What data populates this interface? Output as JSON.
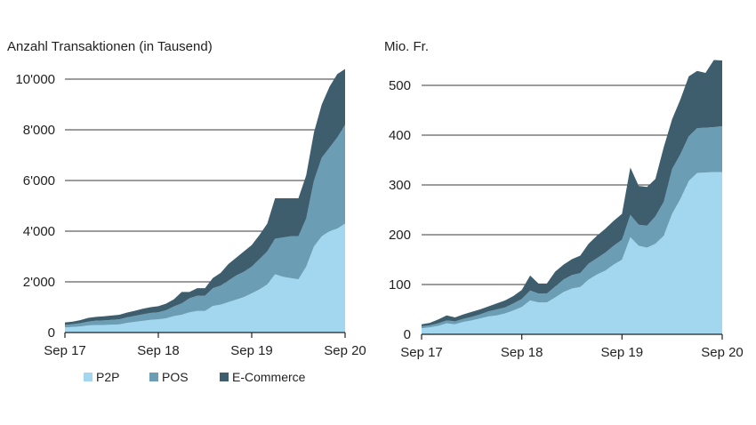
{
  "chart_data": [
    {
      "type": "area",
      "stacked": true,
      "title": "",
      "unit_label": "Anzahl Transaktionen (in Tausend)",
      "xlabel": "",
      "ylabel": "",
      "x_ticks": [
        "Sep 17",
        "Sep 18",
        "Sep 19",
        "Sep 20"
      ],
      "y_ticks": [
        "0",
        "2'000",
        "4'000",
        "6'000",
        "8'000",
        "10'000"
      ],
      "ylim": [
        0,
        10500
      ],
      "grid": "horizontal",
      "x": [
        "2017-09",
        "2017-10",
        "2017-11",
        "2017-12",
        "2018-01",
        "2018-02",
        "2018-03",
        "2018-04",
        "2018-05",
        "2018-06",
        "2018-07",
        "2018-08",
        "2018-09",
        "2018-10",
        "2018-11",
        "2018-12",
        "2019-01",
        "2019-02",
        "2019-03",
        "2019-04",
        "2019-05",
        "2019-06",
        "2019-07",
        "2019-08",
        "2019-09",
        "2019-10",
        "2019-11",
        "2019-12",
        "2020-01",
        "2020-02",
        "2020-03",
        "2020-04",
        "2020-05",
        "2020-06",
        "2020-07",
        "2020-08",
        "2020-09"
      ],
      "series": [
        {
          "name": "P2P",
          "color": "#a3d7f0",
          "values": [
            200,
            220,
            240,
            280,
            300,
            300,
            310,
            320,
            380,
            420,
            460,
            500,
            520,
            560,
            650,
            700,
            800,
            850,
            850,
            1050,
            1100,
            1200,
            1300,
            1400,
            1550,
            1700,
            1900,
            2300,
            2200,
            2150,
            2100,
            2600,
            3400,
            3800,
            4000,
            4100,
            4300
          ]
        },
        {
          "name": "POS",
          "color": "#6b9db4",
          "values": [
            100,
            110,
            130,
            150,
            170,
            180,
            190,
            200,
            220,
            240,
            260,
            270,
            280,
            320,
            380,
            450,
            550,
            600,
            600,
            700,
            750,
            850,
            950,
            1000,
            1050,
            1200,
            1300,
            1400,
            1550,
            1650,
            1700,
            1900,
            2600,
            3100,
            3300,
            3600,
            3900
          ]
        },
        {
          "name": "E-Commerce",
          "color": "#3e5e6e",
          "values": [
            100,
            100,
            120,
            150,
            150,
            160,
            170,
            180,
            190,
            200,
            220,
            230,
            240,
            260,
            280,
            450,
            250,
            300,
            300,
            400,
            500,
            650,
            700,
            800,
            850,
            950,
            1100,
            1600,
            1550,
            1500,
            1500,
            1700,
            1900,
            2100,
            2400,
            2500,
            2200
          ]
        }
      ]
    },
    {
      "type": "area",
      "stacked": true,
      "title": "",
      "unit_label": "Mio. Fr.",
      "xlabel": "",
      "ylabel": "",
      "x_ticks": [
        "Sep 17",
        "Sep 18",
        "Sep 19",
        "Sep 20"
      ],
      "y_ticks": [
        "0",
        "100",
        "200",
        "300",
        "400",
        "500"
      ],
      "ylim": [
        0,
        550
      ],
      "grid": "horizontal",
      "x": [
        "2017-09",
        "2017-10",
        "2017-11",
        "2017-12",
        "2018-01",
        "2018-02",
        "2018-03",
        "2018-04",
        "2018-05",
        "2018-06",
        "2018-07",
        "2018-08",
        "2018-09",
        "2018-10",
        "2018-11",
        "2018-12",
        "2019-01",
        "2019-02",
        "2019-03",
        "2019-04",
        "2019-05",
        "2019-06",
        "2019-07",
        "2019-08",
        "2019-09",
        "2019-10",
        "2019-11",
        "2019-12",
        "2020-01",
        "2020-02",
        "2020-03",
        "2020-04",
        "2020-05",
        "2020-06",
        "2020-07",
        "2020-08",
        "2020-09"
      ],
      "series": [
        {
          "name": "P2P",
          "color": "#a3d7f0",
          "values": [
            12,
            14,
            17,
            22,
            20,
            25,
            28,
            32,
            36,
            38,
            42,
            48,
            55,
            68,
            64,
            64,
            74,
            85,
            92,
            95,
            110,
            120,
            128,
            140,
            150,
            195,
            178,
            174,
            182,
            198,
            242,
            272,
            308,
            324,
            325,
            326,
            326
          ]
        },
        {
          "name": "POS",
          "color": "#6b9db4",
          "values": [
            4,
            4,
            5,
            6,
            6,
            6,
            7,
            8,
            10,
            12,
            12,
            14,
            16,
            20,
            18,
            18,
            22,
            25,
            27,
            28,
            32,
            33,
            36,
            38,
            40,
            45,
            42,
            44,
            55,
            68,
            90,
            90,
            90,
            90,
            90,
            90,
            92
          ]
        },
        {
          "name": "E-Commerce",
          "color": "#3e5e6e",
          "values": [
            4,
            5,
            8,
            10,
            8,
            9,
            10,
            10,
            10,
            12,
            14,
            15,
            18,
            30,
            20,
            20,
            30,
            30,
            32,
            35,
            40,
            45,
            48,
            50,
            52,
            95,
            78,
            78,
            75,
            110,
            100,
            110,
            120,
            115,
            110,
            135,
            132
          ]
        }
      ]
    }
  ],
  "legend": [
    {
      "label": "P2P",
      "color": "#a3d7f0"
    },
    {
      "label": "POS",
      "color": "#6b9db4"
    },
    {
      "label": "E-Commerce",
      "color": "#3e5e6e"
    }
  ]
}
